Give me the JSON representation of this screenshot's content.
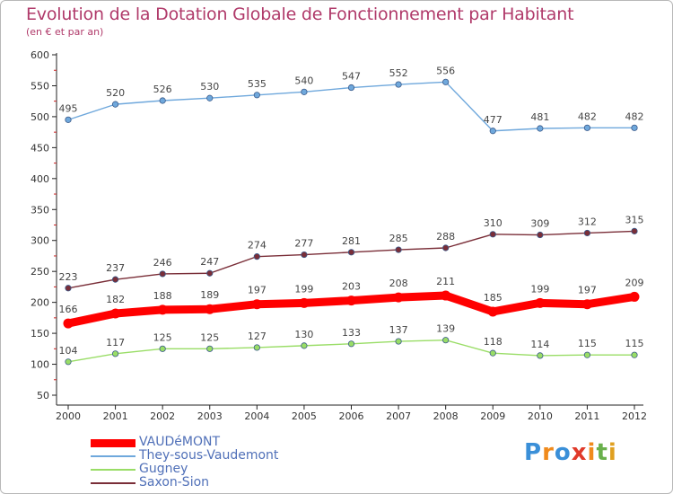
{
  "chart_data": {
    "type": "line",
    "title": "Evolution de la Dotation Globale de Fonctionnement par Habitant",
    "subtitle": "(en € et par an)",
    "xlabel": "",
    "ylabel": "",
    "x": [
      "2000",
      "2001",
      "2002",
      "2003",
      "2004",
      "2005",
      "2006",
      "2007",
      "2008",
      "2009",
      "2010",
      "2011",
      "2012"
    ],
    "ylim": [
      50,
      600
    ],
    "yticks": [
      50,
      100,
      150,
      200,
      250,
      300,
      350,
      400,
      450,
      500,
      550,
      600
    ],
    "grid": false,
    "legend_position": "bottom-left",
    "series": [
      {
        "name": "VAUDéMONT",
        "color": "#ff0000",
        "values": [
          166,
          182,
          188,
          189,
          197,
          199,
          203,
          208,
          211,
          185,
          199,
          197,
          209
        ]
      },
      {
        "name": "They-sous-Vaudemont",
        "color": "#6fa8dc",
        "values": [
          495,
          520,
          526,
          530,
          535,
          540,
          547,
          552,
          556,
          477,
          481,
          482,
          482
        ]
      },
      {
        "name": "Gugney",
        "color": "#99dd66",
        "values": [
          104,
          117,
          125,
          125,
          127,
          130,
          133,
          137,
          139,
          118,
          114,
          115,
          115
        ]
      },
      {
        "name": "Saxon-Sion",
        "color": "#7a2e38",
        "values": [
          223,
          237,
          246,
          247,
          274,
          277,
          281,
          285,
          288,
          310,
          309,
          312,
          315
        ]
      }
    ]
  },
  "logo": {
    "text": "Proxiti",
    "letters": [
      "P",
      "r",
      "o",
      "x",
      "i",
      "t",
      "i"
    ],
    "colors": [
      "#3a8fd8",
      "#f08a1c",
      "#3a8fd8",
      "#e03a2a",
      "#f08a1c",
      "#6ab04c",
      "#e0a020"
    ]
  }
}
